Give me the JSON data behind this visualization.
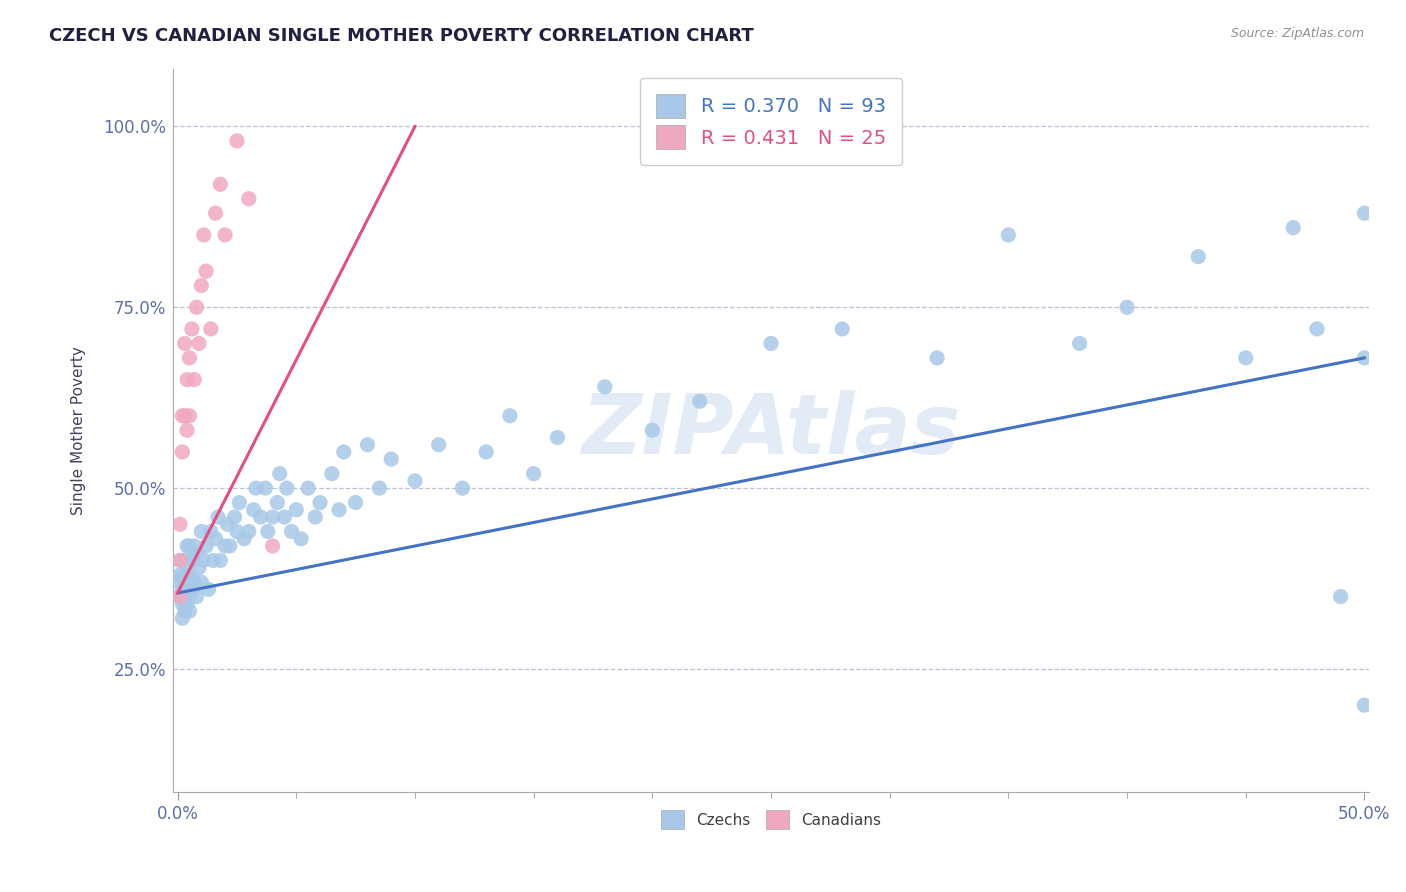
{
  "title": "CZECH VS CANADIAN SINGLE MOTHER POVERTY CORRELATION CHART",
  "source": "Source: ZipAtlas.com",
  "ylabel": "Single Mother Poverty",
  "xlim": [
    -0.002,
    0.502
  ],
  "ylim": [
    0.08,
    1.08
  ],
  "x_ticks": [
    0.0,
    0.5
  ],
  "x_tick_labels": [
    "0.0%",
    "50.0%"
  ],
  "y_ticks": [
    0.25,
    0.5,
    0.75,
    1.0
  ],
  "y_tick_labels": [
    "25.0%",
    "50.0%",
    "75.0%",
    "100.0%"
  ],
  "czech_color": "#a8c8e8",
  "canadian_color": "#f0a8c0",
  "czech_line_color": "#4472c4",
  "canadian_line_color": "#e05080",
  "czech_R": 0.37,
  "czech_N": 93,
  "canadian_R": 0.431,
  "canadian_N": 25,
  "background_color": "#ffffff",
  "grid_color": "#c0c0d8",
  "watermark": "ZIPAtlas",
  "figsize": [
    14.06,
    8.92
  ],
  "dpi": 100,
  "czechs_x": [
    0.001,
    0.001,
    0.001,
    0.001,
    0.002,
    0.002,
    0.002,
    0.002,
    0.002,
    0.003,
    0.003,
    0.003,
    0.003,
    0.004,
    0.004,
    0.004,
    0.004,
    0.005,
    0.005,
    0.005,
    0.005,
    0.006,
    0.006,
    0.007,
    0.007,
    0.008,
    0.008,
    0.009,
    0.01,
    0.01,
    0.011,
    0.012,
    0.013,
    0.014,
    0.015,
    0.016,
    0.017,
    0.018,
    0.02,
    0.021,
    0.022,
    0.024,
    0.025,
    0.026,
    0.028,
    0.03,
    0.032,
    0.033,
    0.035,
    0.037,
    0.038,
    0.04,
    0.042,
    0.043,
    0.045,
    0.046,
    0.048,
    0.05,
    0.052,
    0.055,
    0.058,
    0.06,
    0.065,
    0.068,
    0.07,
    0.075,
    0.08,
    0.085,
    0.09,
    0.1,
    0.11,
    0.12,
    0.13,
    0.14,
    0.15,
    0.16,
    0.18,
    0.2,
    0.22,
    0.25,
    0.28,
    0.32,
    0.35,
    0.38,
    0.4,
    0.43,
    0.45,
    0.47,
    0.48,
    0.49,
    0.5,
    0.5,
    0.5
  ],
  "czechs_y": [
    0.35,
    0.37,
    0.38,
    0.4,
    0.32,
    0.34,
    0.36,
    0.38,
    0.4,
    0.33,
    0.35,
    0.37,
    0.4,
    0.34,
    0.36,
    0.38,
    0.42,
    0.33,
    0.35,
    0.38,
    0.42,
    0.36,
    0.4,
    0.37,
    0.42,
    0.35,
    0.41,
    0.39,
    0.37,
    0.44,
    0.4,
    0.42,
    0.36,
    0.44,
    0.4,
    0.43,
    0.46,
    0.4,
    0.42,
    0.45,
    0.42,
    0.46,
    0.44,
    0.48,
    0.43,
    0.44,
    0.47,
    0.5,
    0.46,
    0.5,
    0.44,
    0.46,
    0.48,
    0.52,
    0.46,
    0.5,
    0.44,
    0.47,
    0.43,
    0.5,
    0.46,
    0.48,
    0.52,
    0.47,
    0.55,
    0.48,
    0.56,
    0.5,
    0.54,
    0.51,
    0.56,
    0.5,
    0.55,
    0.6,
    0.52,
    0.57,
    0.64,
    0.58,
    0.62,
    0.7,
    0.72,
    0.68,
    0.85,
    0.7,
    0.75,
    0.82,
    0.68,
    0.86,
    0.72,
    0.35,
    0.2,
    0.88,
    0.68
  ],
  "canadians_x": [
    0.001,
    0.001,
    0.001,
    0.002,
    0.002,
    0.003,
    0.003,
    0.004,
    0.004,
    0.005,
    0.005,
    0.006,
    0.007,
    0.008,
    0.009,
    0.01,
    0.011,
    0.012,
    0.014,
    0.016,
    0.018,
    0.02,
    0.025,
    0.03,
    0.04
  ],
  "canadians_y": [
    0.35,
    0.4,
    0.45,
    0.55,
    0.6,
    0.6,
    0.7,
    0.58,
    0.65,
    0.6,
    0.68,
    0.72,
    0.65,
    0.75,
    0.7,
    0.78,
    0.85,
    0.8,
    0.72,
    0.88,
    0.92,
    0.85,
    0.98,
    0.9,
    0.42
  ]
}
